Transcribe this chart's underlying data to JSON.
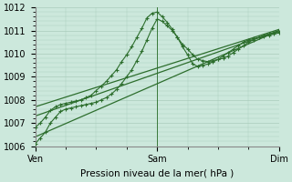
{
  "xlabel": "Pression niveau de la mer( hPa )",
  "bg_color": "#cce8dc",
  "grid_color": "#aaccbb",
  "line_color": "#2d6e2d",
  "xlim": [
    0,
    48
  ],
  "ylim": [
    1006,
    1012
  ],
  "yticks": [
    1006,
    1007,
    1008,
    1009,
    1010,
    1011,
    1012
  ],
  "xtick_labels": [
    "Ven",
    "Sam",
    "Dim"
  ],
  "xtick_positions": [
    0,
    24,
    48
  ],
  "line1_x": [
    0,
    1,
    2,
    3,
    4,
    5,
    6,
    7,
    8,
    9,
    10,
    11,
    12,
    13,
    14,
    15,
    16,
    17,
    18,
    19,
    20,
    21,
    22,
    23,
    24,
    25,
    26,
    27,
    28,
    29,
    30,
    31,
    32,
    33,
    34,
    35,
    36,
    37,
    38,
    39,
    40,
    41,
    42,
    43,
    44,
    45,
    46,
    47,
    48
  ],
  "line1_y": [
    1006.1,
    1006.35,
    1006.6,
    1007.0,
    1007.25,
    1007.5,
    1007.6,
    1007.65,
    1007.7,
    1007.75,
    1007.8,
    1007.85,
    1007.9,
    1008.0,
    1008.1,
    1008.25,
    1008.45,
    1008.7,
    1009.0,
    1009.3,
    1009.7,
    1010.1,
    1010.6,
    1011.1,
    1011.5,
    1011.4,
    1011.2,
    1011.0,
    1010.7,
    1010.4,
    1010.2,
    1009.95,
    1009.75,
    1009.7,
    1009.65,
    1009.7,
    1009.75,
    1009.8,
    1009.9,
    1010.05,
    1010.2,
    1010.35,
    1010.5,
    1010.6,
    1010.7,
    1010.8,
    1010.85,
    1010.9,
    1010.95
  ],
  "line2_x": [
    0,
    1,
    2,
    3,
    4,
    5,
    6,
    7,
    8,
    9,
    10,
    11,
    12,
    13,
    14,
    15,
    16,
    17,
    18,
    19,
    20,
    21,
    22,
    23,
    24,
    25,
    26,
    27,
    28,
    29,
    30,
    31,
    32,
    33,
    34,
    35,
    36,
    37,
    38,
    39,
    40,
    41,
    42,
    43,
    44,
    45,
    46,
    47,
    48
  ],
  "line2_y": [
    1006.8,
    1007.0,
    1007.25,
    1007.55,
    1007.7,
    1007.8,
    1007.85,
    1007.9,
    1007.95,
    1008.0,
    1008.1,
    1008.2,
    1008.4,
    1008.6,
    1008.8,
    1009.05,
    1009.3,
    1009.65,
    1009.95,
    1010.3,
    1010.7,
    1011.1,
    1011.55,
    1011.75,
    1011.8,
    1011.6,
    1011.35,
    1011.05,
    1010.7,
    1010.3,
    1009.95,
    1009.55,
    1009.45,
    1009.5,
    1009.55,
    1009.65,
    1009.75,
    1009.9,
    1010.05,
    1010.2,
    1010.35,
    1010.5,
    1010.6,
    1010.65,
    1010.7,
    1010.75,
    1010.8,
    1010.85,
    1010.9
  ],
  "line3_x": [
    0,
    48
  ],
  "line3_y": [
    1006.4,
    1011.0
  ],
  "line4_x": [
    0,
    48
  ],
  "line4_y": [
    1007.3,
    1011.0
  ],
  "line5_x": [
    0,
    48
  ],
  "line5_y": [
    1007.7,
    1011.05
  ]
}
